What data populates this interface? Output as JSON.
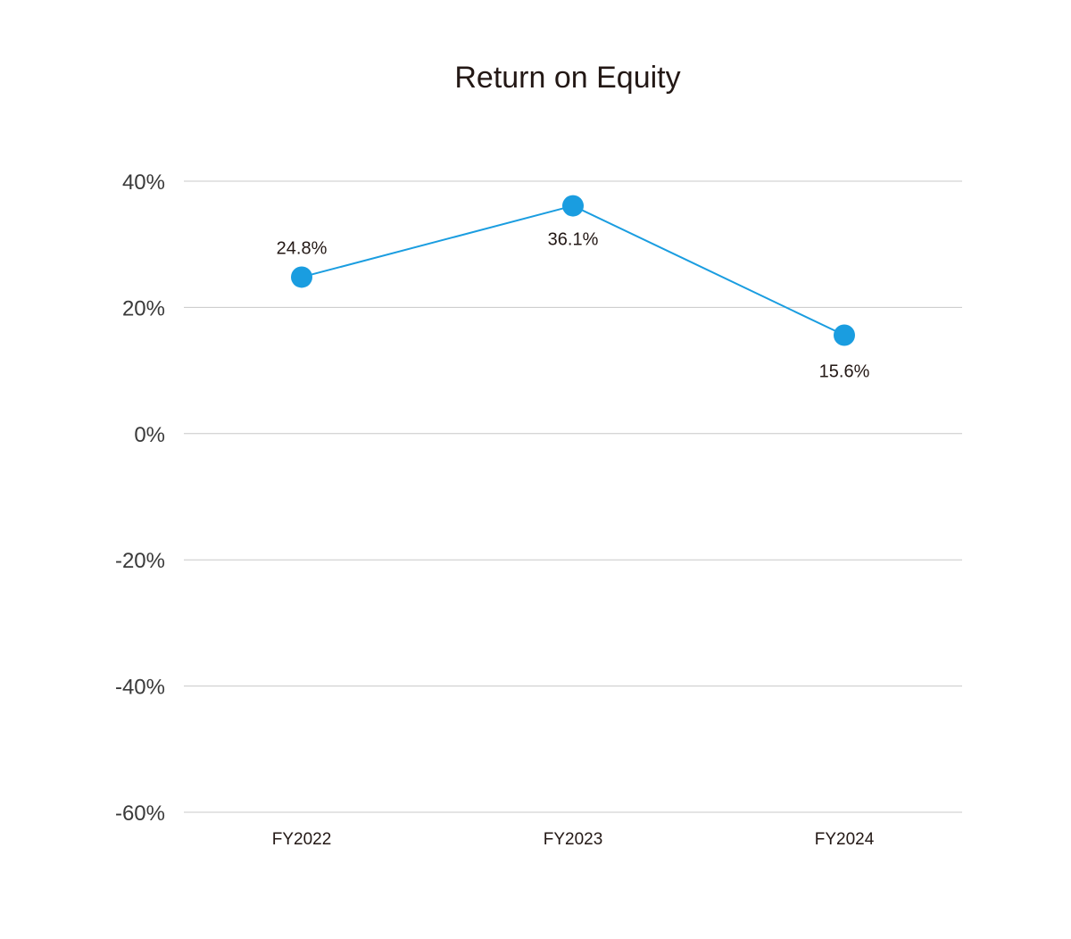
{
  "chart_data": {
    "type": "line",
    "title": "Return on Equity",
    "xlabel": "",
    "ylabel": "",
    "categories": [
      "FY2022",
      "FY2023",
      "FY2024"
    ],
    "series": [
      {
        "values": [
          24.8,
          36.1,
          15.6
        ],
        "labels": [
          "24.8%",
          "36.1%",
          "15.6%"
        ],
        "color": "#1a9de0"
      }
    ],
    "ylim": [
      -60,
      40
    ],
    "yticks": [
      40,
      20,
      0,
      -20,
      -40,
      -60
    ],
    "ytick_labels": [
      "40%",
      "20%",
      "0%",
      "-20%",
      "-40%",
      "-60%"
    ],
    "grid": true,
    "legend": "none"
  }
}
